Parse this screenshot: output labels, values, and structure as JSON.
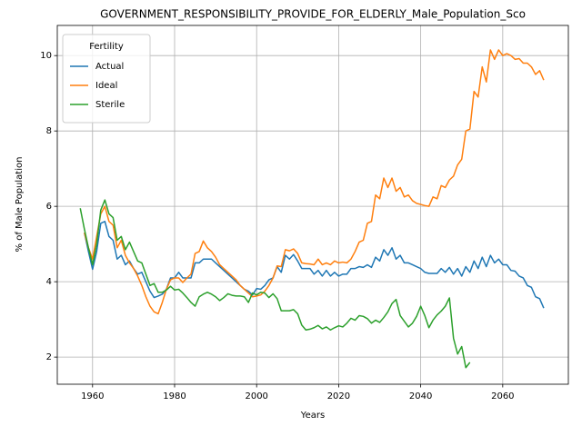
{
  "chart_data": {
    "type": "line",
    "title": "GOVERNMENT_RESPONSIBILITY_PROVIDE_FOR_ELDERLY_Male_Population_Sco",
    "x_label": "Years",
    "y_label": "% of Male Population",
    "legend_title": "Fertility",
    "legend": "upper left",
    "grid": true,
    "x": [
      1957,
      1958,
      1959,
      1960,
      1961,
      1962,
      1963,
      1964,
      1965,
      1966,
      1967,
      1968,
      1969,
      1970,
      1971,
      1972,
      1973,
      1974,
      1975,
      1976,
      1977,
      1978,
      1979,
      1980,
      1981,
      1982,
      1983,
      1984,
      1985,
      1986,
      1987,
      1988,
      1989,
      1990,
      1991,
      1992,
      1993,
      1994,
      1995,
      1996,
      1997,
      1998,
      1999,
      2000,
      2001,
      2002,
      2003,
      2004,
      2005,
      2006,
      2007,
      2008,
      2009,
      2010,
      2011,
      2012,
      2013,
      2014,
      2015,
      2016,
      2017,
      2018,
      2019,
      2020,
      2021,
      2022,
      2023,
      2024,
      2025,
      2026,
      2027,
      2028,
      2029,
      2030,
      2031,
      2032,
      2033,
      2034,
      2035,
      2036,
      2037,
      2038,
      2039,
      2040,
      2041,
      2042,
      2043,
      2044,
      2045,
      2046,
      2047,
      2048,
      2049,
      2050,
      2051,
      2052,
      2053,
      2054,
      2055,
      2056,
      2057,
      2058,
      2059,
      2060,
      2061,
      2062,
      2063,
      2064,
      2065,
      2066,
      2067,
      2068,
      2069,
      2070
    ],
    "series": [
      {
        "name": "Actual",
        "color": "#1f77b4",
        "values": [
          null,
          5.3,
          4.8,
          4.33,
          4.8,
          5.55,
          5.6,
          5.2,
          5.1,
          4.6,
          4.7,
          4.45,
          4.55,
          4.35,
          4.2,
          4.25,
          4.0,
          3.75,
          3.58,
          3.62,
          3.67,
          3.8,
          4.1,
          4.1,
          4.25,
          4.1,
          4.1,
          4.1,
          4.5,
          4.5,
          4.6,
          4.6,
          4.6,
          4.5,
          4.4,
          4.3,
          4.2,
          4.1,
          4.0,
          3.9,
          3.8,
          3.75,
          3.65,
          3.82,
          3.8,
          3.9,
          4.05,
          4.1,
          4.4,
          4.25,
          4.7,
          4.6,
          4.72,
          4.55,
          4.35,
          4.35,
          4.35,
          4.2,
          4.3,
          4.15,
          4.3,
          4.15,
          4.25,
          4.15,
          4.2,
          4.2,
          4.35,
          4.35,
          4.4,
          4.38,
          4.45,
          4.38,
          4.65,
          4.55,
          4.85,
          4.7,
          4.9,
          4.6,
          4.7,
          4.5,
          4.5,
          4.45,
          4.4,
          4.35,
          4.25,
          4.22,
          4.22,
          4.22,
          4.35,
          4.25,
          4.38,
          4.2,
          4.35,
          4.15,
          4.4,
          4.25,
          4.55,
          4.35,
          4.65,
          4.4,
          4.7,
          4.5,
          4.6,
          4.45,
          4.45,
          4.3,
          4.28,
          4.15,
          4.1,
          3.9,
          3.85,
          3.6,
          3.55,
          3.3
        ]
      },
      {
        "name": "Ideal",
        "color": "#ff7f0e",
        "values": [
          null,
          5.3,
          4.9,
          4.6,
          5.2,
          5.8,
          6.0,
          5.6,
          5.5,
          4.9,
          5.1,
          4.7,
          4.5,
          4.35,
          4.15,
          3.9,
          3.6,
          3.35,
          3.2,
          3.15,
          3.45,
          3.8,
          4.05,
          4.1,
          4.1,
          3.98,
          4.1,
          4.2,
          4.75,
          4.8,
          5.08,
          4.9,
          4.8,
          4.65,
          4.45,
          4.35,
          4.25,
          4.15,
          4.05,
          3.9,
          3.8,
          3.7,
          3.6,
          3.62,
          3.65,
          3.75,
          3.9,
          4.1,
          4.42,
          4.4,
          4.85,
          4.82,
          4.87,
          4.75,
          4.5,
          4.48,
          4.47,
          4.45,
          4.6,
          4.45,
          4.5,
          4.45,
          4.55,
          4.5,
          4.52,
          4.5,
          4.6,
          4.8,
          5.05,
          5.1,
          5.55,
          5.6,
          6.3,
          6.2,
          6.75,
          6.5,
          6.75,
          6.4,
          6.5,
          6.25,
          6.3,
          6.15,
          6.08,
          6.05,
          6.02,
          6.0,
          6.25,
          6.2,
          6.55,
          6.5,
          6.7,
          6.8,
          7.1,
          7.25,
          8.0,
          8.05,
          9.05,
          8.9,
          9.7,
          9.3,
          10.15,
          9.9,
          10.15,
          10.0,
          10.05,
          10.0,
          9.9,
          9.92,
          9.8,
          9.8,
          9.7,
          9.5,
          9.6,
          9.35
        ]
      },
      {
        "name": "Sterile",
        "color": "#2ca02c",
        "values": [
          5.95,
          5.4,
          4.9,
          4.45,
          5.0,
          5.9,
          6.17,
          5.8,
          5.7,
          5.1,
          5.2,
          4.85,
          5.05,
          4.8,
          4.55,
          4.5,
          4.2,
          3.9,
          3.95,
          3.72,
          3.72,
          3.78,
          3.88,
          3.78,
          3.8,
          3.7,
          3.58,
          3.45,
          3.35,
          3.6,
          3.67,
          3.72,
          3.67,
          3.6,
          3.5,
          3.58,
          3.68,
          3.64,
          3.62,
          3.62,
          3.6,
          3.45,
          3.7,
          3.65,
          3.72,
          3.7,
          3.58,
          3.68,
          3.55,
          3.23,
          3.23,
          3.23,
          3.26,
          3.15,
          2.85,
          2.72,
          2.74,
          2.78,
          2.84,
          2.75,
          2.8,
          2.72,
          2.78,
          2.83,
          2.8,
          2.9,
          3.03,
          2.98,
          3.1,
          3.08,
          3.02,
          2.9,
          2.98,
          2.92,
          3.05,
          3.2,
          3.42,
          3.53,
          3.1,
          2.95,
          2.8,
          2.9,
          3.08,
          3.35,
          3.1,
          2.78,
          2.98,
          3.12,
          3.22,
          3.35,
          3.57,
          2.5,
          2.08,
          2.28,
          1.72,
          1.86,
          null,
          null,
          null,
          null,
          null,
          null,
          null,
          null,
          null,
          null,
          null,
          null,
          null,
          null,
          null,
          null,
          null,
          null
        ]
      }
    ],
    "xlim": [
      1951.4,
      2076.0
    ],
    "xticks": [
      1960,
      1980,
      2000,
      2020,
      2040,
      2060
    ],
    "ylim": [
      1.28,
      10.8
    ],
    "yticks": [
      2,
      4,
      6,
      8,
      10
    ]
  }
}
